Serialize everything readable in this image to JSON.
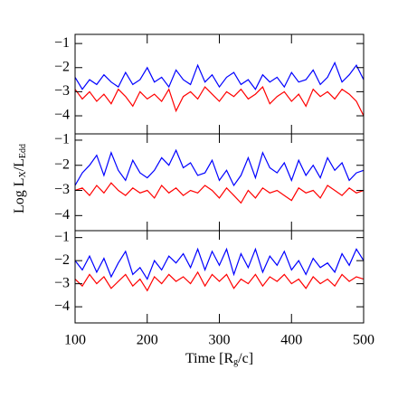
{
  "chart_data": [
    {
      "type": "line",
      "x": [
        100,
        110,
        120,
        130,
        140,
        150,
        160,
        170,
        180,
        190,
        200,
        210,
        220,
        230,
        240,
        250,
        260,
        270,
        280,
        290,
        300,
        310,
        320,
        330,
        340,
        350,
        360,
        370,
        380,
        390,
        400,
        410,
        420,
        430,
        440,
        450,
        460,
        470,
        480,
        490,
        500
      ],
      "series": [
        {
          "color": "#ff0000",
          "values": [
            -2.9,
            -3.3,
            -3.0,
            -3.4,
            -3.1,
            -3.5,
            -2.9,
            -3.2,
            -3.6,
            -3.0,
            -3.3,
            -3.1,
            -3.4,
            -2.9,
            -3.8,
            -3.2,
            -3.0,
            -3.3,
            -2.8,
            -3.1,
            -3.4,
            -3.0,
            -3.2,
            -2.9,
            -3.3,
            -3.1,
            -2.8,
            -3.5,
            -3.2,
            -3.0,
            -3.4,
            -3.1,
            -3.6,
            -2.9,
            -3.2,
            -3.0,
            -3.3,
            -2.9,
            -3.1,
            -3.4,
            -4.0
          ]
        },
        {
          "color": "#0000ff",
          "values": [
            -2.4,
            -2.9,
            -2.5,
            -2.7,
            -2.3,
            -2.6,
            -2.8,
            -2.2,
            -2.7,
            -2.5,
            -2.0,
            -2.6,
            -2.4,
            -2.8,
            -2.1,
            -2.5,
            -2.7,
            -1.9,
            -2.6,
            -2.3,
            -2.8,
            -2.4,
            -2.2,
            -2.7,
            -2.5,
            -2.9,
            -2.3,
            -2.6,
            -2.4,
            -2.8,
            -2.2,
            -2.6,
            -2.5,
            -2.1,
            -2.7,
            -2.4,
            -1.8,
            -2.6,
            -2.3,
            -1.9,
            -2.5
          ]
        }
      ],
      "xlim": [
        100,
        500
      ],
      "xticks": [
        100,
        200,
        300,
        400,
        500
      ],
      "ylim": [
        -4.75,
        -0.62
      ],
      "yticks": [
        {
          "value": -1,
          "label": "−1"
        },
        {
          "value": -2,
          "label": "−2"
        },
        {
          "value": -3,
          "label": "−3"
        },
        {
          "value": -4,
          "label": "−4"
        }
      ]
    },
    {
      "type": "line",
      "x": [
        100,
        110,
        120,
        130,
        140,
        150,
        160,
        170,
        180,
        190,
        200,
        210,
        220,
        230,
        240,
        250,
        260,
        270,
        280,
        290,
        300,
        310,
        320,
        330,
        340,
        350,
        360,
        370,
        380,
        390,
        400,
        410,
        420,
        430,
        440,
        450,
        460,
        470,
        480,
        490,
        500
      ],
      "series": [
        {
          "color": "#ff0000",
          "values": [
            -3.0,
            -2.9,
            -3.2,
            -2.8,
            -3.1,
            -2.7,
            -3.0,
            -3.2,
            -2.9,
            -3.1,
            -3.0,
            -3.3,
            -2.8,
            -3.1,
            -2.9,
            -3.2,
            -3.0,
            -3.1,
            -2.8,
            -3.0,
            -3.3,
            -2.9,
            -3.2,
            -3.5,
            -3.0,
            -3.3,
            -2.9,
            -3.1,
            -3.0,
            -3.2,
            -3.4,
            -2.9,
            -3.1,
            -3.0,
            -3.3,
            -2.8,
            -3.0,
            -3.2,
            -2.9,
            -3.1,
            -3.0
          ]
        },
        {
          "color": "#0000ff",
          "values": [
            -2.8,
            -2.3,
            -2.0,
            -1.6,
            -2.4,
            -1.5,
            -2.2,
            -2.6,
            -1.8,
            -2.3,
            -2.5,
            -2.2,
            -1.7,
            -2.0,
            -1.4,
            -2.1,
            -1.9,
            -2.4,
            -2.3,
            -1.8,
            -2.6,
            -2.2,
            -2.8,
            -2.4,
            -1.7,
            -2.5,
            -1.5,
            -2.1,
            -2.3,
            -1.9,
            -2.6,
            -1.8,
            -2.4,
            -2.0,
            -2.5,
            -1.7,
            -2.2,
            -1.9,
            -2.6,
            -2.3,
            -2.2
          ]
        }
      ],
      "xlim": [
        100,
        500
      ],
      "xticks": [
        100,
        200,
        300,
        400,
        500
      ],
      "ylim": [
        -4.6,
        -0.75
      ],
      "yticks": [
        {
          "value": -1,
          "label": "−1"
        },
        {
          "value": -2,
          "label": "−2"
        },
        {
          "value": -3,
          "label": "−3"
        },
        {
          "value": -4,
          "label": "−4"
        }
      ],
      "ylabel": [
        "Log L",
        "X",
        "/L",
        "Edd"
      ]
    },
    {
      "type": "line",
      "x": [
        100,
        110,
        120,
        130,
        140,
        150,
        160,
        170,
        180,
        190,
        200,
        210,
        220,
        230,
        240,
        250,
        260,
        270,
        280,
        290,
        300,
        310,
        320,
        330,
        340,
        350,
        360,
        370,
        380,
        390,
        400,
        410,
        420,
        430,
        440,
        450,
        460,
        470,
        480,
        490,
        500
      ],
      "series": [
        {
          "color": "#ff0000",
          "values": [
            -2.8,
            -3.1,
            -2.6,
            -3.0,
            -2.7,
            -3.2,
            -2.9,
            -2.6,
            -3.1,
            -2.8,
            -3.3,
            -2.7,
            -3.0,
            -2.6,
            -2.9,
            -2.7,
            -3.0,
            -2.5,
            -3.1,
            -2.6,
            -2.9,
            -2.6,
            -3.2,
            -2.8,
            -3.0,
            -2.6,
            -3.1,
            -2.7,
            -2.9,
            -2.6,
            -3.0,
            -2.8,
            -3.2,
            -2.7,
            -3.0,
            -2.8,
            -3.1,
            -2.6,
            -2.9,
            -2.7,
            -2.8
          ]
        },
        {
          "color": "#0000ff",
          "values": [
            -2.0,
            -2.4,
            -1.8,
            -2.5,
            -1.9,
            -2.7,
            -2.1,
            -1.6,
            -2.6,
            -2.3,
            -2.8,
            -2.0,
            -2.4,
            -1.8,
            -2.1,
            -1.7,
            -2.3,
            -1.5,
            -2.4,
            -1.6,
            -2.2,
            -1.5,
            -2.6,
            -1.7,
            -2.3,
            -1.5,
            -2.5,
            -1.8,
            -2.2,
            -1.6,
            -2.4,
            -2.0,
            -2.6,
            -1.9,
            -2.3,
            -2.1,
            -2.5,
            -1.7,
            -2.2,
            -1.5,
            -2.0
          ]
        }
      ],
      "xlim": [
        100,
        500
      ],
      "xticks": [
        100,
        200,
        300,
        400,
        500
      ],
      "ylim": [
        -4.7,
        -0.7
      ],
      "yticks": [
        {
          "value": -1,
          "label": "−1"
        },
        {
          "value": -2,
          "label": "−2"
        },
        {
          "value": -3,
          "label": "−3"
        },
        {
          "value": -4,
          "label": "−4"
        }
      ],
      "xlabel": [
        "Time [R",
        "g",
        "/c]"
      ]
    }
  ]
}
